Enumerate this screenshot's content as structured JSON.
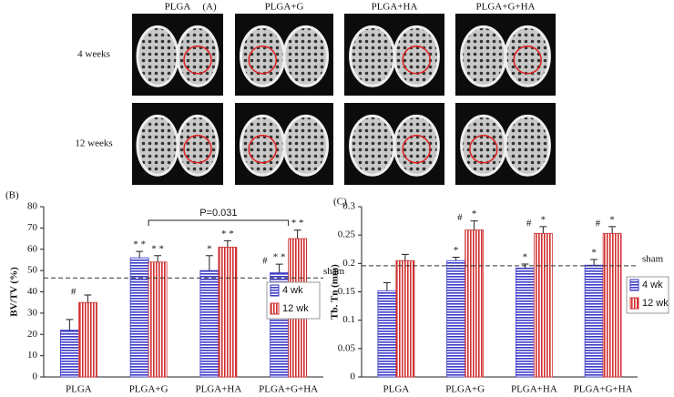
{
  "figure": {
    "label": "(A)",
    "columns": [
      "PLGA",
      "PLGA+G",
      "PLGA+HA",
      "PLGA+G+HA"
    ],
    "rows": [
      "4 weeks",
      "12 weeks"
    ]
  },
  "chart_data": [
    {
      "type": "bar",
      "panel_label": "(B)",
      "ylabel": "BV/TV (%)",
      "categories": [
        "PLGA",
        "PLGA+G",
        "PLGA+HA",
        "PLGA+G+HA"
      ],
      "series": [
        {
          "name": "4 wk",
          "color": "#3b3bc8",
          "values": [
            22,
            56,
            50,
            49
          ],
          "errors": [
            5,
            3,
            7,
            4
          ],
          "sig_hash": [
            null,
            null,
            null,
            "#"
          ],
          "sig_star": [
            null,
            "* *",
            "*",
            "* *"
          ]
        },
        {
          "name": "12 wk",
          "color": "#d03030",
          "values": [
            35,
            54,
            61,
            65
          ],
          "errors": [
            3.5,
            3,
            3,
            4
          ],
          "sig_hash": [
            "#",
            null,
            null,
            null
          ],
          "sig_star": [
            null,
            "* *",
            "* *",
            "* *"
          ]
        }
      ],
      "ylim": [
        0,
        80
      ],
      "yticks": [
        0,
        10,
        20,
        30,
        40,
        50,
        60,
        70,
        80
      ],
      "sham": 46.5,
      "sham_label": "sham",
      "bracket_label": "P=0.031"
    },
    {
      "type": "bar",
      "panel_label": "(C)",
      "ylabel": "Tb. Tn (mm)",
      "categories": [
        "PLGA",
        "PLGA+G",
        "PLGA+HA",
        "PLGA+G+HA"
      ],
      "series": [
        {
          "name": "4 wk",
          "color": "#3b3bc8",
          "values": [
            0.152,
            0.205,
            0.192,
            0.197
          ],
          "errors": [
            0.014,
            0.006,
            0.007,
            0.01
          ],
          "sig_hash": [
            null,
            null,
            null,
            null
          ],
          "sig_star": [
            null,
            "*",
            "*",
            "*"
          ]
        },
        {
          "name": "12 wk",
          "color": "#d03030",
          "values": [
            0.205,
            0.259,
            0.253,
            0.253
          ],
          "errors": [
            0.011,
            0.016,
            0.012,
            0.012
          ],
          "sig_hash": [
            null,
            "#",
            "#",
            "#"
          ],
          "sig_star": [
            null,
            "*",
            "*",
            "*"
          ]
        }
      ],
      "ylim": [
        0,
        0.3
      ],
      "yticks": [
        0,
        0.05,
        0.1,
        0.15,
        0.2,
        0.25,
        0.3
      ],
      "sham": 0.196,
      "sham_label": "sham"
    }
  ]
}
